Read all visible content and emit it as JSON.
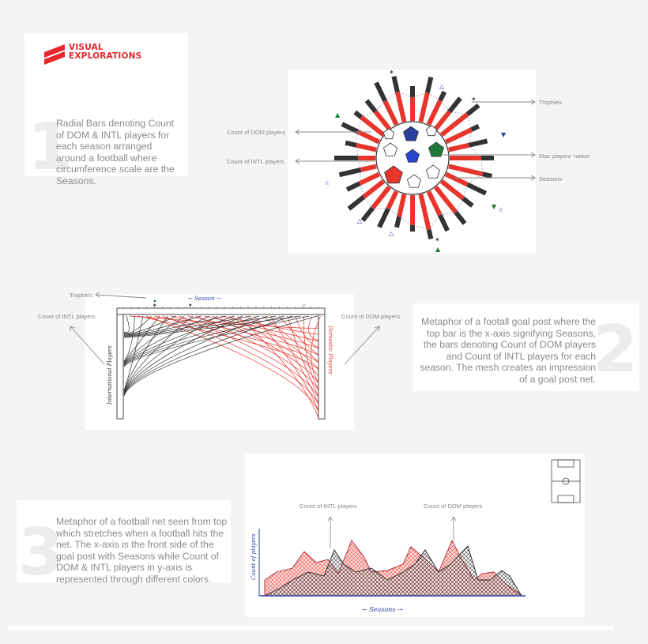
{
  "brand": {
    "line1": "VISUAL",
    "line2": "EXPLORATIONS",
    "color": "#e8262c"
  },
  "section1": {
    "number": "1",
    "description": "Radial Bars denoting Count of DOM & INTL players for each season arranged around a football where circumference scale are the Seasons.",
    "labels": {
      "dom": "Count of DOM players",
      "intl": "Count of INTL players",
      "trophies": "Trophies",
      "nation": "Max players' nation",
      "seasons": "Seasons"
    }
  },
  "section2": {
    "number": "2",
    "description": "Metaphor of a footall goal post where the top bar is the x-axis signifying Seasons, the bars denoting Count of DOM players and Count of INTL players for each season. The mesh creates an impression of a goal post net.",
    "labels": {
      "trophies": "Trophies",
      "intl": "Count of INTL players",
      "dom": "Count of DOM players"
    },
    "sketch": {
      "axis": "← Season →",
      "left_post": "International Players",
      "right_post": "Domestic Players"
    }
  },
  "section3": {
    "number": "3",
    "description": "Metaphor of a football net seen from top which stretches when a football hits the net. The x-axis is the front side of the goal post with Seasons while Count of DOM & INTL players in y-axis is represented through different colors.",
    "labels": {
      "intl": "Count of INTL players",
      "dom": "Count of DOM players"
    },
    "sketch": {
      "xaxis": "← Seasons →",
      "yaxis": "Count of players"
    }
  },
  "colors": {
    "dom": "#e8352c",
    "intl": "#333333",
    "accent_blue": "#2b3f9e",
    "accent_green": "#1f7a3a"
  }
}
